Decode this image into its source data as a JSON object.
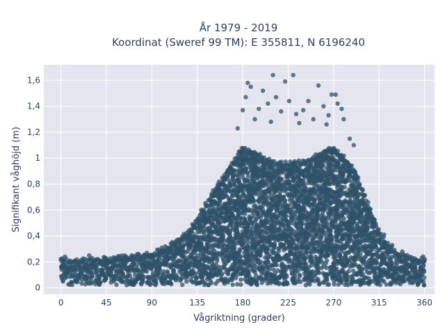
{
  "chart_data": {
    "type": "scatter",
    "title_lines": [
      "År 1979 - 2019",
      "Koordinat (Sweref 99 TM): E 355811, N 6196240"
    ],
    "xlabel": "Vågriktning (grader)",
    "ylabel": "Signifikant våghöjd (m)",
    "xlim": [
      -17,
      370
    ],
    "ylim": [
      -0.05,
      1.72
    ],
    "x_ticks": [
      0,
      45,
      90,
      135,
      180,
      225,
      270,
      315,
      360
    ],
    "x_tick_labels": [
      "0",
      "45",
      "90",
      "135",
      "180",
      "225",
      "270",
      "315",
      "360"
    ],
    "y_ticks": [
      0,
      0.2,
      0.4,
      0.6,
      0.8,
      1.0,
      1.2,
      1.4,
      1.6
    ],
    "y_tick_labels": [
      "0",
      "0,2",
      "0,4",
      "0,6",
      "0,8",
      "1",
      "1,2",
      "1,4",
      "1,6"
    ],
    "grid": true,
    "marker_color": "#2f5168",
    "background_color": "#e5e5f0",
    "envelope": {
      "description_x": [
        0,
        15,
        30,
        45,
        60,
        75,
        90,
        100,
        110,
        120,
        130,
        140,
        150,
        160,
        170,
        180,
        190,
        200,
        210,
        220,
        230,
        240,
        250,
        260,
        270,
        280,
        290,
        300,
        310,
        320,
        330,
        340,
        350,
        360
      ],
      "upper_y": [
        0.21,
        0.21,
        0.21,
        0.22,
        0.23,
        0.24,
        0.26,
        0.29,
        0.33,
        0.38,
        0.47,
        0.6,
        0.72,
        0.84,
        0.97,
        1.07,
        1.05,
        1.0,
        0.96,
        0.95,
        0.97,
        0.97,
        1.0,
        1.05,
        1.07,
        1.0,
        0.92,
        0.72,
        0.52,
        0.36,
        0.28,
        0.24,
        0.22,
        0.23
      ],
      "lower_y": [
        0.02,
        0.02,
        0.02,
        0.02,
        0.02,
        0.02,
        0.02,
        0.02,
        0.02,
        0.02,
        0.02,
        0.02,
        0.02,
        0.02,
        0.02,
        0.02,
        0.02,
        0.02,
        0.02,
        0.02,
        0.02,
        0.02,
        0.02,
        0.02,
        0.02,
        0.02,
        0.02,
        0.02,
        0.02,
        0.02,
        0.02,
        0.02,
        0.02,
        0.02
      ]
    },
    "outliers": [
      {
        "x": 185,
        "y": 1.58
      },
      {
        "x": 200,
        "y": 1.52
      },
      {
        "x": 210,
        "y": 1.64
      },
      {
        "x": 222,
        "y": 1.59
      },
      {
        "x": 230,
        "y": 1.64
      },
      {
        "x": 213,
        "y": 1.47
      },
      {
        "x": 205,
        "y": 1.42
      },
      {
        "x": 188,
        "y": 1.55
      },
      {
        "x": 233,
        "y": 1.34
      },
      {
        "x": 255,
        "y": 1.56
      },
      {
        "x": 268,
        "y": 1.49
      },
      {
        "x": 272,
        "y": 1.49
      },
      {
        "x": 274,
        "y": 1.42
      },
      {
        "x": 278,
        "y": 1.38
      },
      {
        "x": 260,
        "y": 1.4
      },
      {
        "x": 245,
        "y": 1.44
      },
      {
        "x": 240,
        "y": 1.37
      },
      {
        "x": 180,
        "y": 1.37
      },
      {
        "x": 183,
        "y": 1.47
      },
      {
        "x": 196,
        "y": 1.38
      },
      {
        "x": 218,
        "y": 1.36
      },
      {
        "x": 226,
        "y": 1.44
      },
      {
        "x": 192,
        "y": 1.3
      },
      {
        "x": 250,
        "y": 1.3
      },
      {
        "x": 265,
        "y": 1.33
      },
      {
        "x": 280,
        "y": 1.3
      },
      {
        "x": 286,
        "y": 1.15
      },
      {
        "x": 175,
        "y": 1.23
      },
      {
        "x": 208,
        "y": 1.28
      },
      {
        "x": 236,
        "y": 1.27
      },
      {
        "x": 263,
        "y": 1.26
      },
      {
        "x": 290,
        "y": 1.1
      },
      {
        "x": 100,
        "y": 0.31
      },
      {
        "x": 110,
        "y": 0.34
      },
      {
        "x": 120,
        "y": 0.36
      },
      {
        "x": 28,
        "y": 0.25
      },
      {
        "x": 70,
        "y": 0.25
      },
      {
        "x": 85,
        "y": 0.27
      },
      {
        "x": 320,
        "y": 0.41
      },
      {
        "x": 338,
        "y": 0.28
      },
      {
        "x": 328,
        "y": 0.33
      },
      {
        "x": 4,
        "y": 0.24
      }
    ]
  }
}
